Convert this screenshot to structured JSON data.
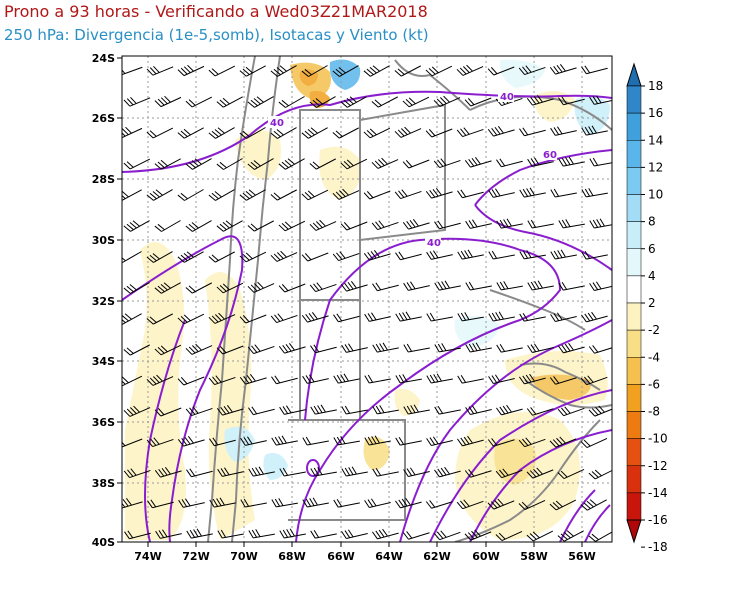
{
  "header": {
    "title": "Prono a 93 horas - Verificando a Wed03Z21MAR2018",
    "subtitle": "250 hPa: Divergencia (1e-5,somb), Isotacas y Viento (kt)"
  },
  "map": {
    "lon_labels": [
      "74W",
      "72W",
      "70W",
      "68W",
      "66W",
      "64W",
      "62W",
      "60W",
      "58W",
      "56W"
    ],
    "lat_labels": [
      "24S",
      "26S",
      "28S",
      "30S",
      "32S",
      "34S",
      "36S",
      "38S",
      "40S"
    ],
    "isotach_labels": [
      "40",
      "40",
      "60",
      "40"
    ],
    "colors": {
      "isotach": "#8a1ecf",
      "coast": "#8a8a8a",
      "positive_divergence": "#3a8fd0",
      "negative_divergence": "#f5d27a"
    }
  },
  "colorbar": {
    "labels": [
      "18",
      "16",
      "14",
      "12",
      "10",
      "8",
      "6",
      "4",
      "2",
      "-2",
      "-4",
      "-6",
      "-8",
      "-10",
      "-12",
      "-14",
      "-16",
      "-18"
    ],
    "colors": [
      "#1f6fb0",
      "#2f86c8",
      "#3fa0dc",
      "#5ab6ea",
      "#7ccaf2",
      "#a2dcf6",
      "#c8eefa",
      "#e4f8fc",
      "#ffffff",
      "#fdf3c0",
      "#f8df86",
      "#f5c04e",
      "#f2a020",
      "#ee7a12",
      "#e65010",
      "#d9300e",
      "#c8160c",
      "#b00808"
    ]
  }
}
